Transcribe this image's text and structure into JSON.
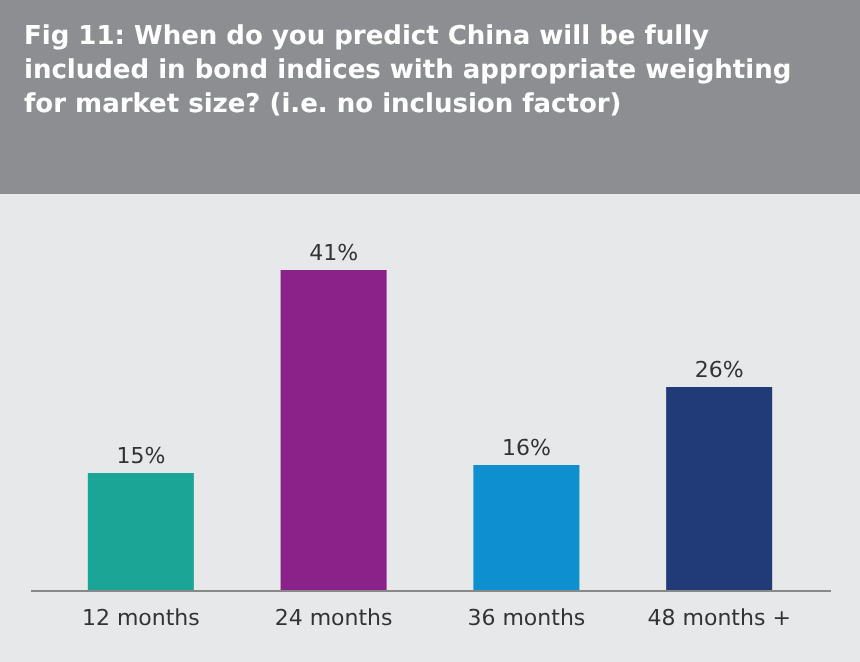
{
  "chart_data": {
    "type": "bar",
    "title": "Fig 11: When do you predict China will be fully included in bond indices with appropriate weighting for market size? (i.e. no inclusion factor)",
    "categories": [
      "12 months",
      "24 months",
      "36 months",
      "48 months +"
    ],
    "values": [
      15,
      41,
      16,
      26
    ],
    "colors": [
      "#1aa597",
      "#8b2289",
      "#0e8fd0",
      "#213a78"
    ],
    "value_labels": [
      "15%",
      "41%",
      "16%",
      "26%"
    ]
  }
}
